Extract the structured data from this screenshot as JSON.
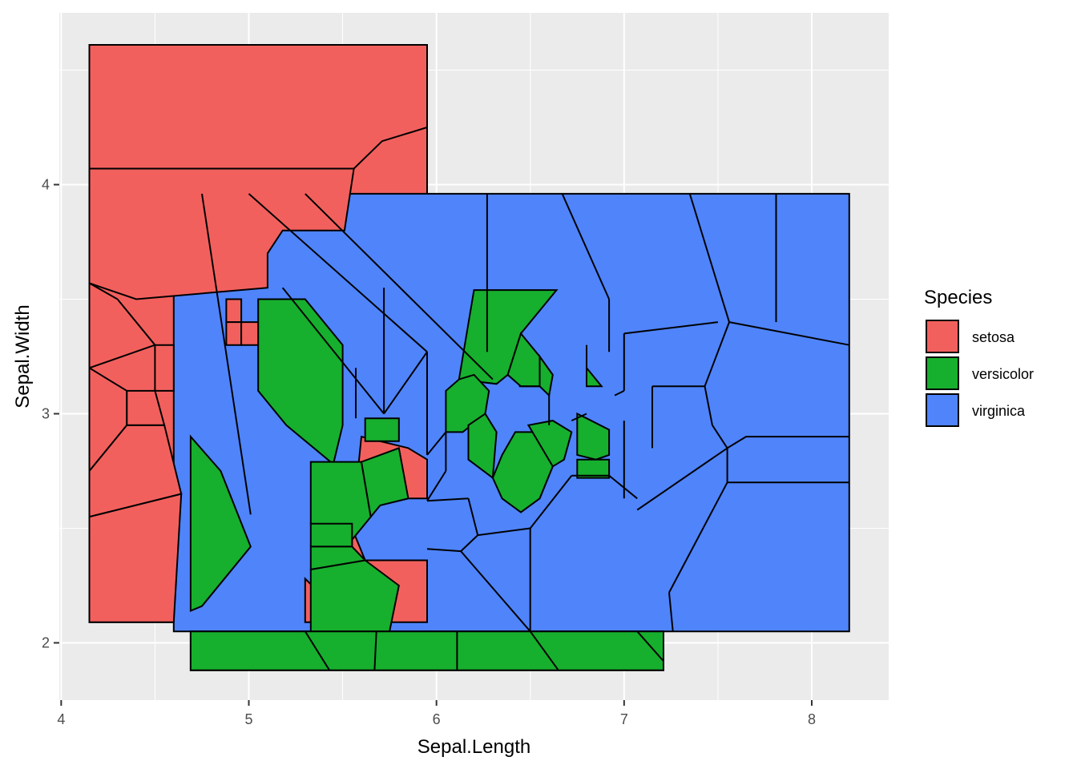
{
  "chart_data": {
    "type": "voronoi-tessellation",
    "x_label": "Sepal.Length",
    "y_label": "Sepal.Width",
    "xlim": [
      3.99,
      8.41
    ],
    "ylim": [
      1.75,
      4.75
    ],
    "x_ticks": [
      4,
      5,
      6,
      7,
      8
    ],
    "y_ticks": [
      2,
      3,
      4
    ],
    "x_tick_labels": [
      "4",
      "5",
      "6",
      "7",
      "8"
    ],
    "y_tick_labels": [
      "2",
      "3",
      "4"
    ],
    "grid": true,
    "legend": {
      "title": "Species",
      "position": "right",
      "entries": [
        {
          "name": "setosa",
          "color": "#F8766D"
        },
        {
          "name": "versicolor",
          "color": "#00BA38"
        },
        {
          "name": "virginica",
          "color": "#619CFF"
        }
      ]
    },
    "fill_colors": {
      "setosa": "#F2605D",
      "versicolor": "#17AF2E",
      "virginica": "#4F84FB"
    },
    "bounding_boxes": [
      {
        "species": "setosa",
        "x": [
          4.15,
          5.95
        ],
        "y": [
          2.09,
          4.61
        ]
      },
      {
        "species": "virginica",
        "x": [
          4.6,
          8.2
        ],
        "y": [
          2.05,
          3.96
        ]
      },
      {
        "species": "versicolor",
        "x": [
          4.69,
          7.21
        ],
        "y": [
          1.88,
          2.05
        ]
      }
    ],
    "cells": [
      {
        "species": "setosa",
        "points": [
          [
            4.15,
            4.61
          ],
          [
            5.95,
            4.61
          ],
          [
            5.95,
            4.25
          ],
          [
            5.71,
            4.19
          ],
          [
            5.56,
            4.07
          ],
          [
            4.15,
            4.07
          ]
        ]
      },
      {
        "species": "setosa",
        "points": [
          [
            4.15,
            3.57
          ],
          [
            4.15,
            4.07
          ],
          [
            5.56,
            4.07
          ],
          [
            5.51,
            3.8
          ],
          [
            5.18,
            3.8
          ],
          [
            5.1,
            3.7
          ],
          [
            5.1,
            3.55
          ],
          [
            4.4,
            3.5
          ]
        ]
      },
      {
        "species": "setosa",
        "points": [
          [
            4.15,
            3.2
          ],
          [
            4.15,
            3.57
          ],
          [
            4.3,
            3.5
          ],
          [
            4.5,
            3.3
          ]
        ]
      },
      {
        "species": "setosa",
        "points": [
          [
            4.15,
            2.75
          ],
          [
            4.15,
            3.2
          ],
          [
            4.35,
            3.1
          ],
          [
            4.35,
            2.95
          ]
        ]
      },
      {
        "species": "setosa",
        "points": [
          [
            4.15,
            2.55
          ],
          [
            4.15,
            2.75
          ],
          [
            4.35,
            2.95
          ],
          [
            4.55,
            2.95
          ],
          [
            4.64,
            2.65
          ]
        ]
      },
      {
        "species": "setosa",
        "points": [
          [
            4.15,
            2.09
          ],
          [
            4.15,
            2.55
          ],
          [
            4.64,
            2.65
          ],
          [
            4.6,
            2.09
          ]
        ]
      },
      {
        "species": "setosa",
        "points": [
          [
            4.35,
            2.95
          ],
          [
            4.35,
            3.1
          ],
          [
            4.5,
            3.1
          ],
          [
            4.55,
            2.95
          ]
        ]
      },
      {
        "species": "setosa",
        "points": [
          [
            4.5,
            3.1
          ],
          [
            4.5,
            3.3
          ],
          [
            4.6,
            3.3
          ],
          [
            4.6,
            3.1
          ]
        ]
      },
      {
        "species": "setosa",
        "points": [
          [
            4.88,
            3.4
          ],
          [
            4.88,
            3.5
          ],
          [
            4.96,
            3.5
          ],
          [
            4.96,
            3.4
          ]
        ]
      },
      {
        "species": "setosa",
        "points": [
          [
            4.88,
            3.3
          ],
          [
            4.88,
            3.4
          ],
          [
            4.96,
            3.4
          ],
          [
            4.96,
            3.3
          ]
        ]
      },
      {
        "species": "setosa",
        "points": [
          [
            4.96,
            3.3
          ],
          [
            4.96,
            3.4
          ],
          [
            5.15,
            3.4
          ],
          [
            5.15,
            3.3
          ]
        ]
      },
      {
        "species": "setosa",
        "points": [
          [
            5.3,
            2.09
          ],
          [
            5.3,
            2.28
          ],
          [
            5.53,
            2.09
          ]
        ]
      },
      {
        "species": "setosa",
        "points": [
          [
            5.55,
            2.5
          ],
          [
            5.55,
            2.67
          ],
          [
            5.7,
            2.77
          ],
          [
            5.85,
            2.63
          ],
          [
            5.95,
            2.63
          ],
          [
            5.95,
            2.8
          ],
          [
            5.85,
            2.85
          ],
          [
            5.6,
            2.9
          ]
        ]
      },
      {
        "species": "setosa",
        "points": [
          [
            5.55,
            2.09
          ],
          [
            5.55,
            2.5
          ],
          [
            5.62,
            2.36
          ],
          [
            5.8,
            2.36
          ],
          [
            5.95,
            2.36
          ],
          [
            5.95,
            2.09
          ]
        ]
      },
      {
        "species": "versicolor",
        "points": [
          [
            5.05,
            3.5
          ],
          [
            5.05,
            3.1
          ],
          [
            5.2,
            2.95
          ],
          [
            5.45,
            2.78
          ],
          [
            5.5,
            2.95
          ],
          [
            5.5,
            3.3
          ],
          [
            5.3,
            3.5
          ]
        ]
      },
      {
        "species": "versicolor",
        "points": [
          [
            5.33,
            2.52
          ],
          [
            5.33,
            2.79
          ],
          [
            5.6,
            2.79
          ],
          [
            5.65,
            2.55
          ],
          [
            5.55,
            2.45
          ]
        ]
      },
      {
        "species": "versicolor",
        "points": [
          [
            5.65,
            2.55
          ],
          [
            5.6,
            2.79
          ],
          [
            5.8,
            2.85
          ],
          [
            5.85,
            2.63
          ],
          [
            5.7,
            2.6
          ]
        ]
      },
      {
        "species": "versicolor",
        "points": [
          [
            5.33,
            2.42
          ],
          [
            5.33,
            2.52
          ],
          [
            5.55,
            2.52
          ],
          [
            5.55,
            2.42
          ]
        ]
      },
      {
        "species": "versicolor",
        "points": [
          [
            5.33,
            2.32
          ],
          [
            5.33,
            2.42
          ],
          [
            5.55,
            2.42
          ],
          [
            5.62,
            2.36
          ]
        ]
      },
      {
        "species": "versicolor",
        "points": [
          [
            5.33,
            2.05
          ],
          [
            5.33,
            2.32
          ],
          [
            5.62,
            2.36
          ],
          [
            5.8,
            2.25
          ],
          [
            5.75,
            2.05
          ]
        ]
      },
      {
        "species": "versicolor",
        "points": [
          [
            4.69,
            2.9
          ],
          [
            4.69,
            2.14
          ],
          [
            4.75,
            2.16
          ],
          [
            5.01,
            2.42
          ],
          [
            4.85,
            2.75
          ]
        ]
      },
      {
        "species": "versicolor",
        "points": [
          [
            4.69,
            1.88
          ],
          [
            4.69,
            2.05
          ],
          [
            7.21,
            2.05
          ],
          [
            7.21,
            1.88
          ]
        ]
      },
      {
        "species": "versicolor",
        "points": [
          [
            5.62,
            2.98
          ],
          [
            5.8,
            2.98
          ],
          [
            5.8,
            2.88
          ],
          [
            5.62,
            2.88
          ]
        ]
      },
      {
        "species": "versicolor",
        "points": [
          [
            6.12,
            3.15
          ],
          [
            6.2,
            3.54
          ],
          [
            6.64,
            3.54
          ],
          [
            6.45,
            3.35
          ],
          [
            6.38,
            3.17
          ],
          [
            6.32,
            3.13
          ]
        ]
      },
      {
        "species": "versicolor",
        "points": [
          [
            6.05,
            3.1
          ],
          [
            6.05,
            2.92
          ],
          [
            6.14,
            2.92
          ],
          [
            6.26,
            3.0
          ],
          [
            6.28,
            3.1
          ],
          [
            6.2,
            3.17
          ],
          [
            6.12,
            3.15
          ]
        ]
      },
      {
        "species": "versicolor",
        "points": [
          [
            6.17,
            2.95
          ],
          [
            6.17,
            2.8
          ],
          [
            6.3,
            2.72
          ],
          [
            6.32,
            2.92
          ],
          [
            6.26,
            3.0
          ]
        ]
      },
      {
        "species": "versicolor",
        "points": [
          [
            6.3,
            2.72
          ],
          [
            6.35,
            2.63
          ],
          [
            6.45,
            2.57
          ],
          [
            6.55,
            2.63
          ],
          [
            6.62,
            2.77
          ],
          [
            6.55,
            2.92
          ],
          [
            6.42,
            2.92
          ],
          [
            6.35,
            2.82
          ]
        ]
      },
      {
        "species": "versicolor",
        "points": [
          [
            6.49,
            2.95
          ],
          [
            6.62,
            2.97
          ],
          [
            6.72,
            2.92
          ],
          [
            6.68,
            2.8
          ],
          [
            6.62,
            2.77
          ]
        ]
      },
      {
        "species": "versicolor",
        "points": [
          [
            6.38,
            3.17
          ],
          [
            6.45,
            3.35
          ],
          [
            6.55,
            3.25
          ],
          [
            6.55,
            3.12
          ],
          [
            6.45,
            3.12
          ]
        ]
      },
      {
        "species": "versicolor",
        "points": [
          [
            6.55,
            3.12
          ],
          [
            6.55,
            3.25
          ],
          [
            6.62,
            3.17
          ],
          [
            6.6,
            3.08
          ]
        ]
      },
      {
        "species": "versicolor",
        "points": [
          [
            6.8,
            3.12
          ],
          [
            6.8,
            3.2
          ],
          [
            6.88,
            3.12
          ]
        ]
      },
      {
        "species": "versicolor",
        "points": [
          [
            6.75,
            3.0
          ],
          [
            6.8,
            2.98
          ],
          [
            6.92,
            2.93
          ],
          [
            6.92,
            2.82
          ],
          [
            6.85,
            2.8
          ],
          [
            6.75,
            2.82
          ]
        ]
      },
      {
        "species": "versicolor",
        "points": [
          [
            6.75,
            2.8
          ],
          [
            6.75,
            2.72
          ],
          [
            6.92,
            2.72
          ],
          [
            6.92,
            2.8
          ]
        ]
      }
    ]
  }
}
